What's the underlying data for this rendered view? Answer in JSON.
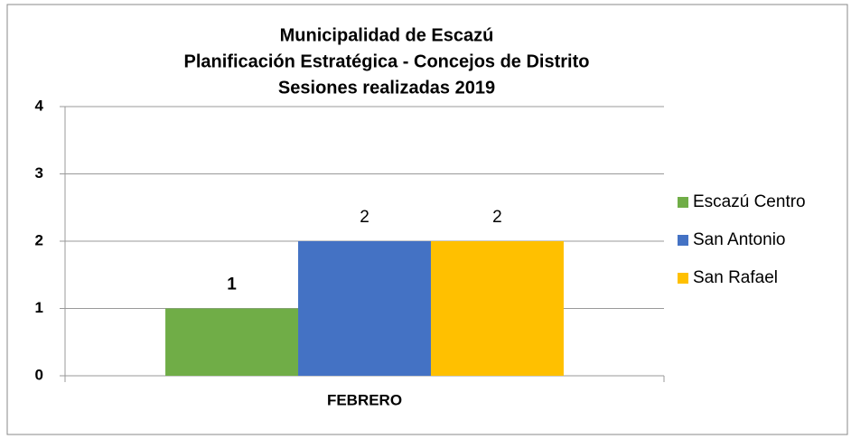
{
  "chart_data": {
    "type": "bar",
    "title": [
      "Municipalidad de Escazú",
      "Planificación Estratégica - Concejos de Distrito",
      "Sesiones realizadas  2019"
    ],
    "categories": [
      "FEBRERO"
    ],
    "series": [
      {
        "name": "Escazú Centro",
        "color": "#70ad47",
        "values": [
          1
        ]
      },
      {
        "name": "San Antonio",
        "color": "#4472c4",
        "values": [
          2
        ]
      },
      {
        "name": "San Rafael",
        "color": "#ffc000",
        "values": [
          2
        ]
      }
    ],
    "ylim": [
      0,
      4
    ],
    "yticks": [
      0,
      1,
      2,
      3,
      4
    ],
    "grid": true,
    "legend": "right"
  }
}
